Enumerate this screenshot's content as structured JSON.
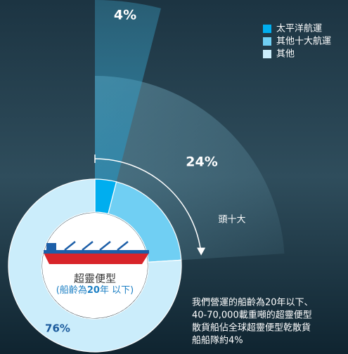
{
  "chart_data": {
    "type": "pie",
    "categories": [
      "太平洋航運",
      "其他十大航運",
      "其他"
    ],
    "values": [
      4,
      20,
      76
    ],
    "value_labels": [
      "4%",
      null,
      "76%"
    ],
    "colors": [
      "#00aeef",
      "#70cff3",
      "#cbedfb"
    ],
    "top_ten": {
      "name": "頭十大",
      "value": 24,
      "value_label": "24%"
    },
    "center_title": "超靈便型",
    "center_subtitle": [
      "(船齡為",
      "20",
      "年 以下)"
    ],
    "note": [
      "我們營運的船齡為20年以下、",
      "40-70,000載重噸的超靈便型",
      "散貨船佔全球超靈便型乾散貨",
      "船船隊約4%"
    ]
  }
}
